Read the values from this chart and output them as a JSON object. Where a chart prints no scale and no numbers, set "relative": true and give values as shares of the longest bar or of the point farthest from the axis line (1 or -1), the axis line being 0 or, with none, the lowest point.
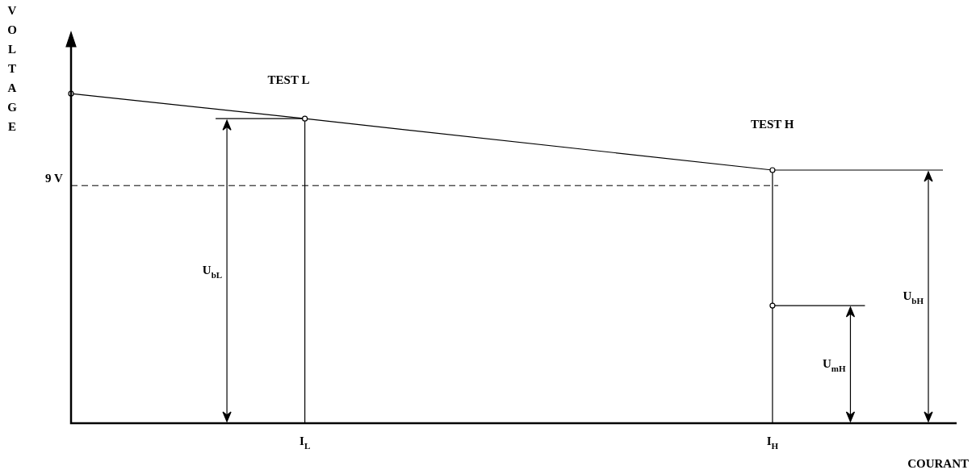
{
  "chart_data": {
    "type": "line",
    "relative": true,
    "xlabel": "COURANT",
    "ylabel": "VOLTAGE",
    "marker": "circle",
    "line_style": "solid",
    "legend": false,
    "grid": "x",
    "categories": [
      null,
      null,
      null,
      "I$_{L}$",
      null,
      null,
      null,
      null,
      null,
      "I$_{H}$",
      null,
      null
    ],
    "series": [
      {
        "color": "#000000",
        "values": [
          1,
          null,
          null,
          0.924,
          null,
          null,
          null,
          null,
          null,
          0.768,
          null,
          null
        ]
      },
      {
        "type": "scatter",
        "color": "#000000",
        "values": [
          null,
          null,
          null,
          null,
          null,
          null,
          null,
          null,
          null,
          0.357,
          null,
          null
        ]
      }
    ],
    "ref_lines": [
      {
        "axis": "y",
        "value": 0.721,
        "label": "9 V",
        "line_style": "dashed",
        "color": "#000000"
      }
    ],
    "annotations": [
      "TEST L",
      "TEST H",
      "U$_{bL}$",
      "U$_{mH}$",
      "U$_{bH}$"
    ]
  }
}
